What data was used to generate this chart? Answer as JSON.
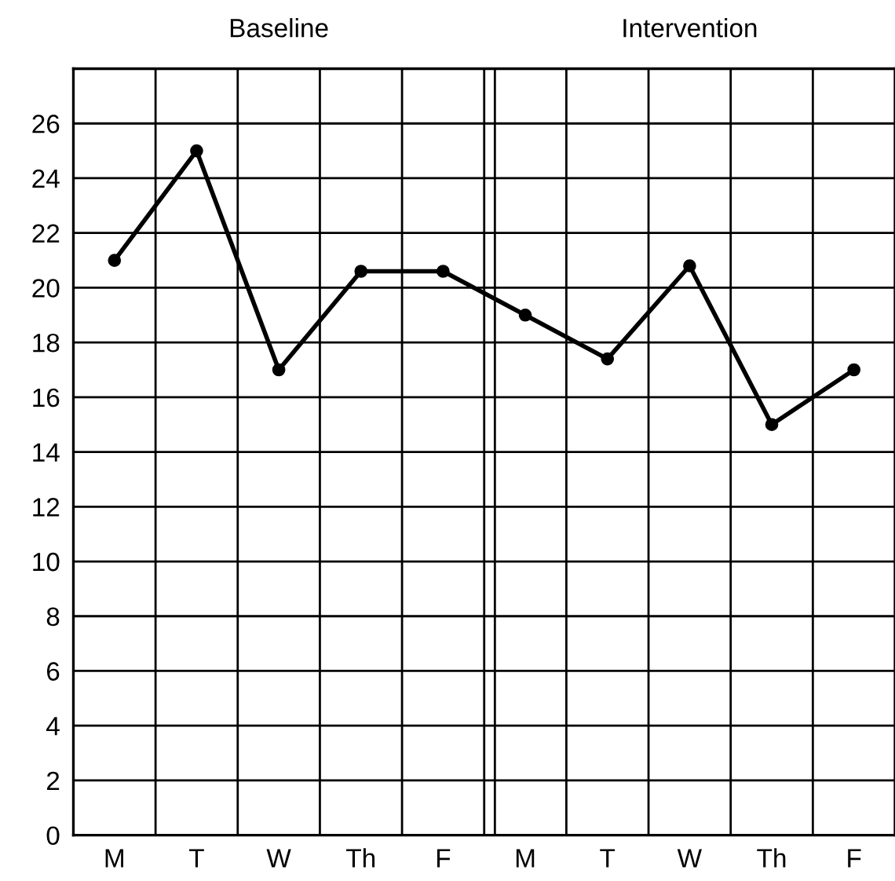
{
  "chart_data": {
    "type": "line",
    "categories": [
      "M",
      "T",
      "W",
      "Th",
      "F",
      "M",
      "T",
      "W",
      "Th",
      "F"
    ],
    "series": [
      {
        "color": "#000000",
        "values": [
          21,
          25,
          17,
          20.6,
          20.6,
          19,
          17.4,
          20.8,
          15,
          17
        ]
      }
    ],
    "ylim": [
      0,
      28
    ],
    "yticks": [
      0,
      2,
      4,
      6,
      8,
      10,
      12,
      14,
      16,
      18,
      20,
      22,
      24,
      26
    ],
    "grid": true,
    "marker": "circle",
    "line_style": "solid",
    "legend": false,
    "annotations": [
      "Baseline",
      "Intervention"
    ]
  }
}
